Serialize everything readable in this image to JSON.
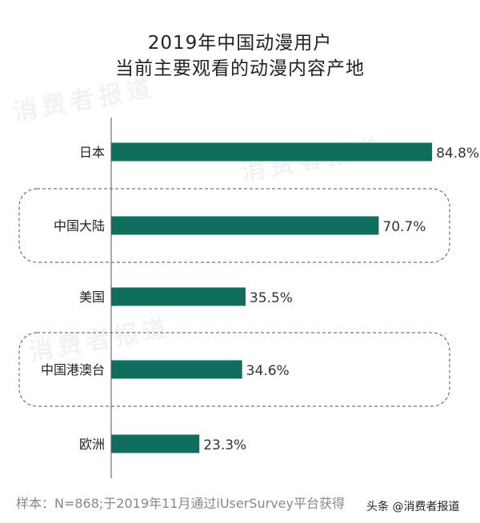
{
  "chart_data": {
    "type": "bar",
    "orientation": "horizontal",
    "title": "2019年中国动漫用户\n当前主要观看的动漫内容产地",
    "title_lines": [
      "2019年中国动漫用户",
      "当前主要观看的动漫内容产地"
    ],
    "categories": [
      "日本",
      "中国大陆",
      "美国",
      "中国港澳台",
      "欧洲"
    ],
    "values": [
      84.8,
      70.7,
      35.5,
      34.6,
      23.3
    ],
    "value_labels": [
      "84.8%",
      "70.7%",
      "35.5%",
      "34.6%",
      "23.3%"
    ],
    "highlighted": [
      "中国大陆",
      "中国港澳台"
    ],
    "xlim": [
      0,
      100
    ],
    "grid": false,
    "bar_color": "#0f6e5e",
    "xlabel": "",
    "ylabel": ""
  },
  "source_note": "样本：N=868;于2019年11月通过iUserSurvey平台获得",
  "credit": "头条 @消费者报道",
  "watermark": "消费者报道"
}
